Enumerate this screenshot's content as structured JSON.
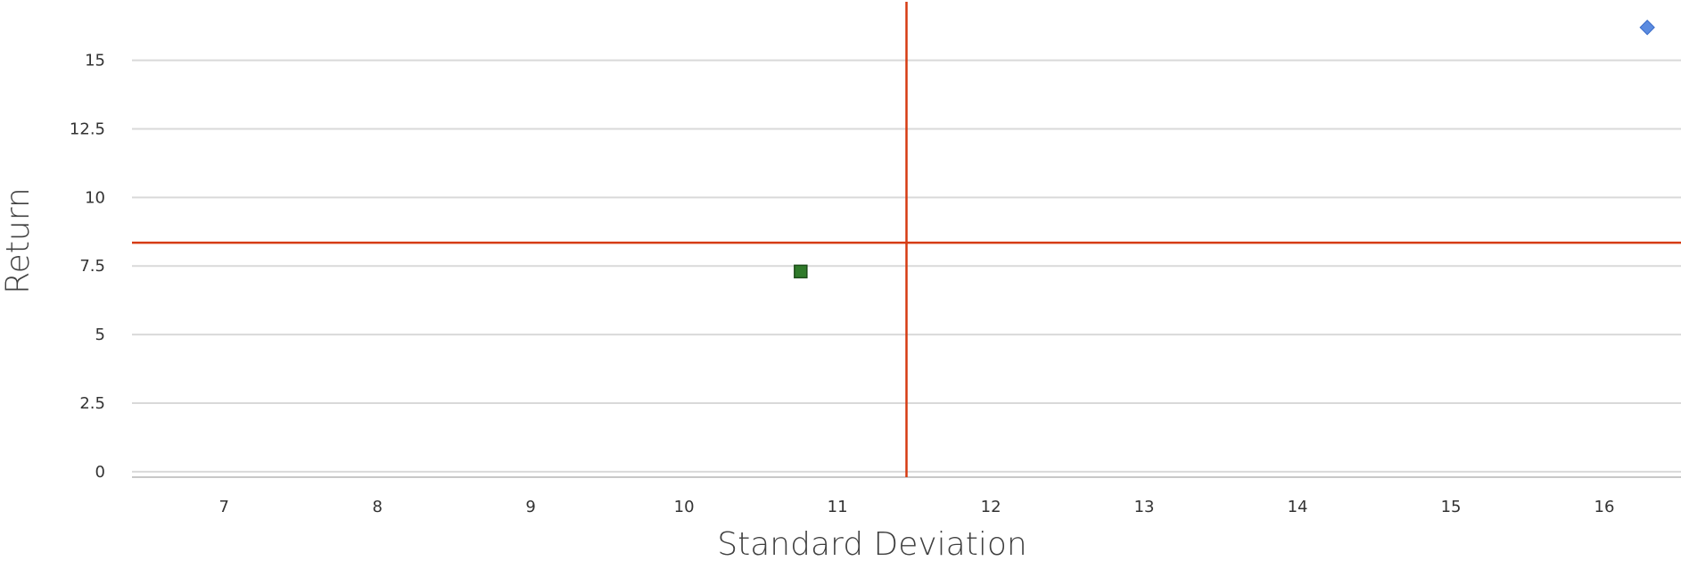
{
  "chart_data": {
    "type": "scatter",
    "title": "",
    "xlabel": "Standard Deviation",
    "ylabel": "Return",
    "xlim": [
      6.4,
      16.5
    ],
    "ylim": [
      -0.2,
      17.2
    ],
    "x_ticks": [
      7,
      8,
      9,
      10,
      11,
      12,
      13,
      14,
      15,
      16
    ],
    "x_tick_labels": [
      "7",
      "8",
      "9",
      "10",
      "11",
      "12",
      "13",
      "14",
      "15",
      "16"
    ],
    "y_ticks": [
      0,
      2.5,
      5,
      7.5,
      10,
      12.5,
      15
    ],
    "y_tick_labels": [
      "0",
      "2.5",
      "5",
      "7.5",
      "10",
      "12.5",
      "15"
    ],
    "grid": "horizontal",
    "legend": "none",
    "points": [
      {
        "x": 16.28,
        "y": 16.2,
        "marker": "diamond",
        "color": "#5b8be0"
      },
      {
        "x": 10.76,
        "y": 7.3,
        "marker": "square",
        "color": "#2f7a2a"
      }
    ],
    "reference_lines": [
      {
        "orientation": "vertical",
        "value": 11.45,
        "color": "#d63b12"
      },
      {
        "orientation": "horizontal",
        "value": 8.35,
        "color": "#d63b12"
      }
    ]
  }
}
